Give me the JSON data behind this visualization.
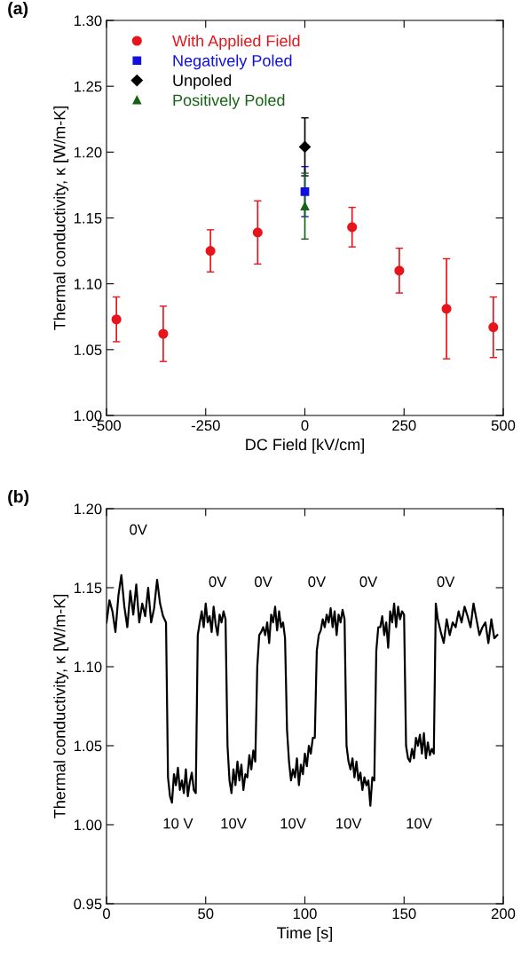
{
  "chart_data": [
    {
      "type": "scatter",
      "title": "(a)",
      "xlabel": "DC Field [kV/cm]",
      "ylabel": "Thermal conductivity, κ [W/m-K]",
      "xlim": [
        -500,
        500
      ],
      "xticks": [
        -500,
        -250,
        0,
        250,
        500
      ],
      "ylim": [
        1.0,
        1.3
      ],
      "yticks": [
        {
          "value": 1.0,
          "label": "1.00"
        },
        {
          "value": 1.05,
          "label": "1.05"
        },
        {
          "value": 1.1,
          "label": "1.10"
        },
        {
          "value": 1.15,
          "label": "1.15"
        },
        {
          "value": 1.2,
          "label": "1.20"
        },
        {
          "value": 1.25,
          "label": "1.25"
        },
        {
          "value": 1.3,
          "label": "1.30"
        }
      ],
      "legend": "top left",
      "grid": false,
      "series": [
        {
          "name": "With Applied Field",
          "color": "#e8141b",
          "marker": "circle",
          "x": [
            -475,
            -357,
            -238,
            -119,
            119,
            238,
            357,
            475
          ],
          "values": [
            1.073,
            1.062,
            1.125,
            1.139,
            1.143,
            1.11,
            1.081,
            1.067
          ],
          "errors": [
            [
              1.056,
              1.09
            ],
            [
              1.041,
              1.083
            ],
            [
              1.109,
              1.141
            ],
            [
              1.115,
              1.163
            ],
            [
              1.128,
              1.158
            ],
            [
              1.093,
              1.127
            ],
            [
              1.043,
              1.119
            ],
            [
              1.044,
              1.09
            ]
          ]
        },
        {
          "name": "Negatively Poled",
          "color": "#1010e0",
          "marker": "square",
          "x": [
            0
          ],
          "values": [
            1.17
          ],
          "errors": [
            [
              1.151,
              1.189
            ]
          ]
        },
        {
          "name": "Unpoled",
          "color": "#000000",
          "marker": "diamond",
          "x": [
            0
          ],
          "values": [
            1.204
          ],
          "errors": [
            [
              1.182,
              1.226
            ]
          ]
        },
        {
          "name": "Positively Poled",
          "color": "#146414",
          "marker": "triangle",
          "x": [
            0
          ],
          "values": [
            1.159
          ],
          "errors": [
            [
              1.134,
              1.184
            ]
          ]
        }
      ]
    },
    {
      "type": "line",
      "title": "(b)",
      "xlabel": "Time [s]",
      "ylabel": "Thermal conductivity, κ [W/m-K]",
      "xlim": [
        0,
        200
      ],
      "xticks": [
        0,
        50,
        100,
        150,
        200
      ],
      "ylim": [
        0.95,
        1.2
      ],
      "yticks": [
        {
          "value": 0.95,
          "label": "0.95"
        },
        {
          "value": 1.0,
          "label": "1.00"
        },
        {
          "value": 1.05,
          "label": "1.05"
        },
        {
          "value": 1.1,
          "label": "1.10"
        },
        {
          "value": 1.15,
          "label": "1.15"
        },
        {
          "value": 1.2,
          "label": "1.20"
        }
      ],
      "grid": false,
      "marker": "none",
      "line_style": "solid",
      "annotations": [
        "0V",
        "0V",
        "0V",
        "0V",
        "0V",
        "0V",
        "10 V",
        "10V",
        "10V",
        "10V",
        "10V"
      ],
      "series": [
        {
          "color": "#000000",
          "x": [
            0,
            1.5,
            3,
            4.5,
            6,
            7.5,
            9,
            10.5,
            12,
            13.5,
            15,
            16.5,
            18,
            19.5,
            21,
            22.5,
            24,
            25.5,
            27,
            28.5,
            30,
            31,
            32,
            33,
            34,
            35,
            36,
            37,
            38,
            39,
            40,
            41,
            42,
            43,
            44,
            45,
            46,
            47,
            48,
            49,
            50,
            51,
            52,
            53,
            54,
            55,
            56,
            57,
            58,
            59,
            60,
            61,
            62,
            63,
            64,
            65,
            66,
            67,
            68,
            69,
            70,
            71,
            72,
            73,
            74,
            75,
            76,
            77,
            78,
            79,
            80,
            81,
            82,
            83,
            84,
            85,
            86,
            87,
            88,
            89,
            90,
            91,
            92,
            93,
            94,
            95,
            96,
            97,
            98,
            99,
            100,
            101,
            102,
            103,
            104,
            105,
            106,
            107,
            108,
            109,
            110,
            111,
            112,
            113,
            114,
            115,
            116,
            117,
            118,
            119,
            120,
            121,
            122,
            123,
            124,
            125,
            126,
            127,
            128,
            129,
            130,
            131,
            132,
            133,
            134,
            135,
            136,
            137,
            138,
            139,
            140,
            141,
            142,
            143,
            144,
            145,
            146,
            147,
            148,
            149,
            150,
            151,
            152,
            153,
            154,
            155,
            156,
            157,
            158,
            159,
            160,
            161,
            162,
            163,
            164,
            165,
            166,
            167,
            168.5,
            170,
            171.5,
            173,
            174.5,
            176,
            177.5,
            179,
            180.5,
            182,
            183.5,
            185,
            186.5,
            188,
            189.5,
            191,
            192.5,
            194,
            195.5,
            197
          ],
          "values": [
            1.128,
            1.142,
            1.135,
            1.122,
            1.145,
            1.158,
            1.138,
            1.125,
            1.148,
            1.133,
            1.152,
            1.128,
            1.14,
            1.132,
            1.15,
            1.128,
            1.137,
            1.155,
            1.14,
            1.132,
            1.128,
            1.03,
            1.018,
            1.014,
            1.032,
            1.025,
            1.036,
            1.022,
            1.028,
            1.02,
            1.035,
            1.018,
            1.027,
            1.033,
            1.022,
            1.02,
            1.12,
            1.128,
            1.135,
            1.125,
            1.14,
            1.128,
            1.132,
            1.122,
            1.138,
            1.127,
            1.12,
            1.133,
            1.128,
            1.135,
            1.13,
            1.05,
            1.028,
            1.02,
            1.035,
            1.025,
            1.04,
            1.028,
            1.038,
            1.022,
            1.032,
            1.03,
            1.044,
            1.035,
            1.047,
            1.04,
            1.1,
            1.12,
            1.122,
            1.125,
            1.12,
            1.128,
            1.115,
            1.133,
            1.128,
            1.138,
            1.123,
            1.135,
            1.125,
            1.128,
            1.118,
            1.06,
            1.04,
            1.028,
            1.035,
            1.03,
            1.042,
            1.025,
            1.038,
            1.032,
            1.045,
            1.037,
            1.05,
            1.045,
            1.055,
            1.055,
            1.11,
            1.12,
            1.123,
            1.13,
            1.125,
            1.133,
            1.128,
            1.137,
            1.125,
            1.135,
            1.12,
            1.133,
            1.128,
            1.136,
            1.13,
            1.05,
            1.04,
            1.035,
            1.042,
            1.03,
            1.04,
            1.028,
            1.033,
            1.022,
            1.03,
            1.025,
            1.028,
            1.012,
            1.03,
            1.028,
            1.11,
            1.125,
            1.125,
            1.132,
            1.12,
            1.128,
            1.112,
            1.135,
            1.128,
            1.14,
            1.125,
            1.138,
            1.13,
            1.135,
            1.133,
            1.05,
            1.042,
            1.04,
            1.048,
            1.042,
            1.055,
            1.05,
            1.057,
            1.045,
            1.058,
            1.042,
            1.052,
            1.044,
            1.048,
            1.045,
            1.14,
            1.13,
            1.122,
            1.115,
            1.13,
            1.12,
            1.128,
            1.125,
            1.135,
            1.128,
            1.138,
            1.132,
            1.125,
            1.14,
            1.13,
            1.12,
            1.125,
            1.128,
            1.115,
            1.13,
            1.118,
            1.12
          ]
        }
      ]
    }
  ]
}
